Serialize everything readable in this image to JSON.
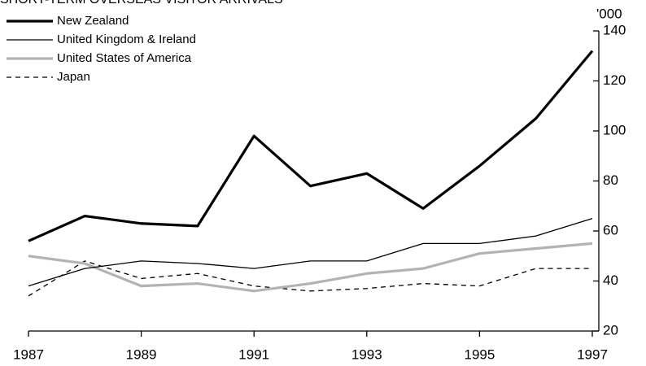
{
  "chart_data": {
    "type": "line",
    "title": "SHORT-TERM OVERSEAS VISITOR ARRIVALS",
    "y_unit_label": "'000",
    "x": [
      1987,
      1988,
      1989,
      1990,
      1991,
      1992,
      1993,
      1994,
      1995,
      1996,
      1997
    ],
    "xlim": [
      1987,
      1997
    ],
    "xticks": [
      1987,
      1989,
      1991,
      1993,
      1995,
      1997
    ],
    "ylim": [
      20,
      140
    ],
    "yticks": [
      20,
      40,
      60,
      80,
      100,
      120,
      140
    ],
    "y_axis_side": "right",
    "grid": false,
    "legend_position": "top-left",
    "series": [
      {
        "name": "New Zealand",
        "color": "#000000",
        "line_style": "thick",
        "values": [
          56,
          66,
          63,
          62,
          98,
          78,
          83,
          69,
          86,
          105,
          132
        ]
      },
      {
        "name": "United Kingdom & Ireland",
        "color": "#000000",
        "line_style": "thin",
        "values": [
          38,
          45,
          48,
          47,
          45,
          48,
          48,
          55,
          55,
          58,
          65
        ]
      },
      {
        "name": "United States of America",
        "color": "#b3b3b3",
        "line_style": "thick",
        "values": [
          50,
          47,
          38,
          39,
          36,
          39,
          43,
          45,
          51,
          53,
          55
        ]
      },
      {
        "name": "Japan",
        "color": "#000000",
        "line_style": "dashed",
        "values": [
          34,
          48,
          41,
          43,
          38,
          36,
          37,
          39,
          38,
          45,
          45
        ]
      }
    ]
  }
}
